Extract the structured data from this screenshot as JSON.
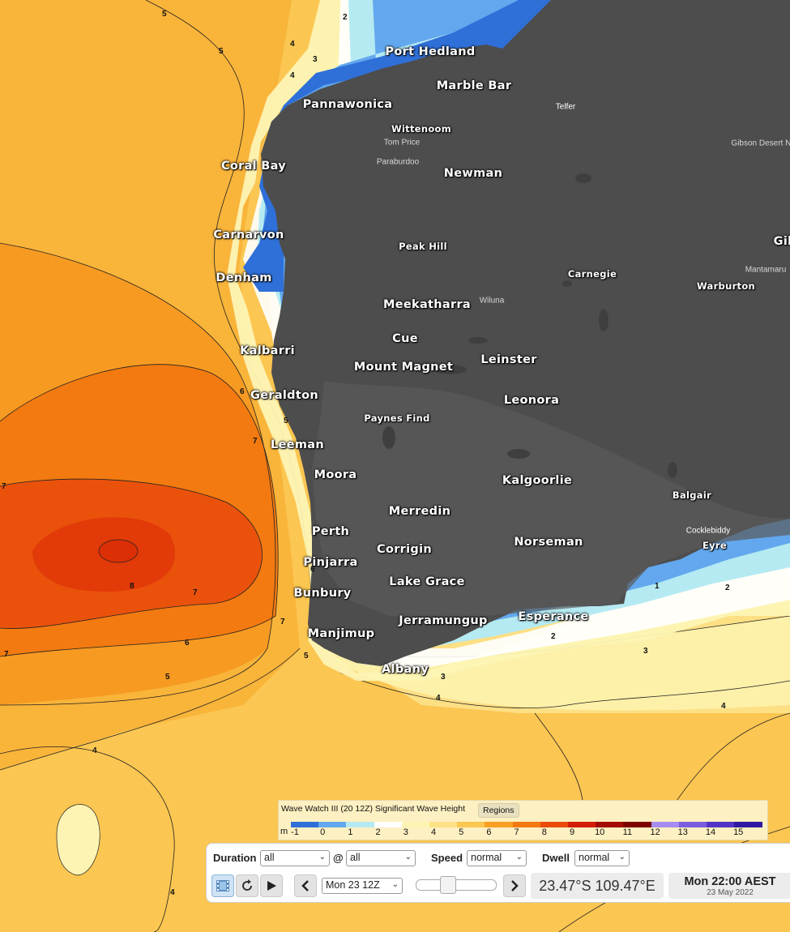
{
  "map": {
    "region": "Western Australia coast",
    "land_color": "#4d4d4d",
    "places_major": [
      "Port Hedland",
      "Marble Bar",
      "Pannawonica",
      "Newman",
      "Coral Bay",
      "Carnarvon",
      "Denham",
      "Meekatharra",
      "Cue",
      "Mount Magnet",
      "Leinster",
      "Leonora",
      "Kalbarri",
      "Geraldton",
      "Leeman",
      "Moora",
      "Kalgoorlie",
      "Merredin",
      "Perth",
      "Pinjarra",
      "Corrigin",
      "Norseman",
      "Bunbury",
      "Lake Grace",
      "Jerramungup",
      "Esperance",
      "Manjimup",
      "Albany",
      "Warburton",
      "Balgair",
      "Eyre"
    ],
    "places_minor": [
      "Wittenoom",
      "Tom Price",
      "Paraburdoo",
      "Peak Hill",
      "Carnegie",
      "Wiluna",
      "Paynes Find",
      "Telfer",
      "Gibson Desert North",
      "Mantamaru",
      "Gil",
      "Cocklebiddy"
    ],
    "contour_labels": [
      "2",
      "3",
      "4",
      "5",
      "6",
      "7",
      "8"
    ]
  },
  "legend": {
    "title": "Wave Watch III (20 12Z) Significant Wave Height",
    "regions_label": "Regions",
    "unit": "m",
    "ticks": [
      "-1",
      "0",
      "1",
      "2",
      "3",
      "4",
      "5",
      "6",
      "7",
      "8",
      "9",
      "10",
      "11",
      "12",
      "13",
      "14",
      "15"
    ],
    "colors": [
      "#2f6fd8",
      "#63a8ee",
      "#b5eaf2",
      "#ffffff",
      "#fdf4b4",
      "#fde185",
      "#fbc651",
      "#f7a024",
      "#f27a10",
      "#ea4b0c",
      "#d21e07",
      "#a20c02",
      "#7c0000",
      "#a78df0",
      "#7a5dde",
      "#5233c6",
      "#3118a2"
    ]
  },
  "controls": {
    "duration_label": "Duration",
    "duration_value": "all",
    "at_label": "@",
    "at_value": "all",
    "speed_label": "Speed",
    "speed_value": "normal",
    "dwell_label": "Dwell",
    "dwell_value": "normal",
    "time_select": "Mon 23 12Z",
    "coordinate": "23.47°S 109.47°E",
    "time_main": "Mon 22:00 AEST",
    "time_date": "23 May 2022"
  }
}
